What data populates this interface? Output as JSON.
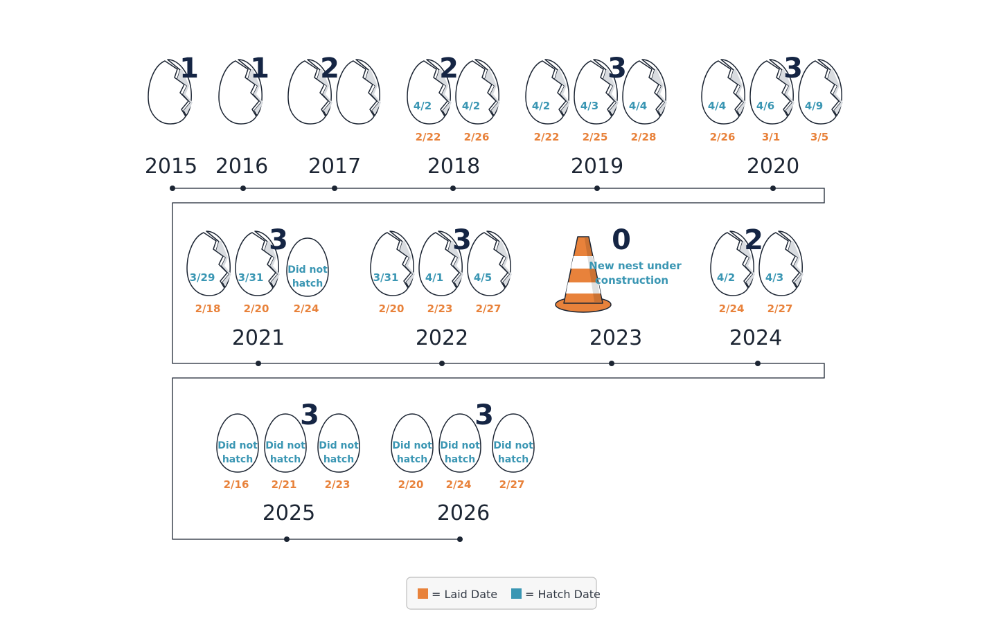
{
  "colors": {
    "laid": "#e8823b",
    "hatch": "#3a96b3",
    "count": "#152544",
    "line": "#1c2533",
    "egg_stroke": "#1c2533"
  },
  "legend": {
    "laid_label": "= Laid Date",
    "hatch_label": "= Hatch Date"
  },
  "years": [
    {
      "year": "2015",
      "count": "1",
      "eggs": [
        {
          "hatch": "",
          "laid": "",
          "status": "hatched"
        }
      ]
    },
    {
      "year": "2016",
      "count": "1",
      "eggs": [
        {
          "hatch": "",
          "laid": "",
          "status": "hatched"
        }
      ]
    },
    {
      "year": "2017",
      "count": "2",
      "eggs": [
        {
          "hatch": "",
          "laid": "",
          "status": "hatched"
        },
        {
          "hatch": "",
          "laid": "",
          "status": "hatched"
        }
      ]
    },
    {
      "year": "2018",
      "count": "2",
      "eggs": [
        {
          "hatch": "4/2",
          "laid": "2/22",
          "status": "hatched"
        },
        {
          "hatch": "4/2",
          "laid": "2/26",
          "status": "hatched"
        }
      ]
    },
    {
      "year": "2019",
      "count": "3",
      "eggs": [
        {
          "hatch": "4/2",
          "laid": "2/22",
          "status": "hatched"
        },
        {
          "hatch": "4/3",
          "laid": "2/25",
          "status": "hatched"
        },
        {
          "hatch": "4/4",
          "laid": "2/28",
          "status": "hatched"
        }
      ]
    },
    {
      "year": "2020",
      "count": "3",
      "eggs": [
        {
          "hatch": "4/4",
          "laid": "2/26",
          "status": "hatched"
        },
        {
          "hatch": "4/6",
          "laid": "3/1",
          "status": "hatched"
        },
        {
          "hatch": "4/9",
          "laid": "3/5",
          "status": "hatched"
        }
      ]
    },
    {
      "year": "2021",
      "count": "3",
      "eggs": [
        {
          "hatch": "3/29",
          "laid": "2/18",
          "status": "hatched"
        },
        {
          "hatch": "3/31",
          "laid": "2/20",
          "status": "hatched"
        },
        {
          "hatch": "",
          "laid": "2/24",
          "status": "not_hatched"
        }
      ]
    },
    {
      "year": "2022",
      "count": "3",
      "eggs": [
        {
          "hatch": "3/31",
          "laid": "2/20",
          "status": "hatched"
        },
        {
          "hatch": "4/1",
          "laid": "2/23",
          "status": "hatched"
        },
        {
          "hatch": "4/5",
          "laid": "2/27",
          "status": "hatched"
        }
      ]
    },
    {
      "year": "2023",
      "count": "0",
      "eggs": [],
      "note_line1": "New nest under",
      "note_line2": "construction"
    },
    {
      "year": "2024",
      "count": "2",
      "eggs": [
        {
          "hatch": "4/2",
          "laid": "2/24",
          "status": "hatched"
        },
        {
          "hatch": "4/3",
          "laid": "2/27",
          "status": "hatched"
        }
      ]
    },
    {
      "year": "2025",
      "count": "3",
      "eggs": [
        {
          "hatch": "",
          "laid": "2/16",
          "status": "not_hatched"
        },
        {
          "hatch": "",
          "laid": "2/21",
          "status": "not_hatched"
        },
        {
          "hatch": "",
          "laid": "2/23",
          "status": "not_hatched"
        }
      ]
    },
    {
      "year": "2026",
      "count": "3",
      "eggs": [
        {
          "hatch": "",
          "laid": "2/20",
          "status": "not_hatched"
        },
        {
          "hatch": "",
          "laid": "2/24",
          "status": "not_hatched"
        },
        {
          "hatch": "",
          "laid": "2/27",
          "status": "not_hatched"
        }
      ]
    }
  ],
  "did_not_hatch_line1": "Did not",
  "did_not_hatch_line2": "hatch"
}
